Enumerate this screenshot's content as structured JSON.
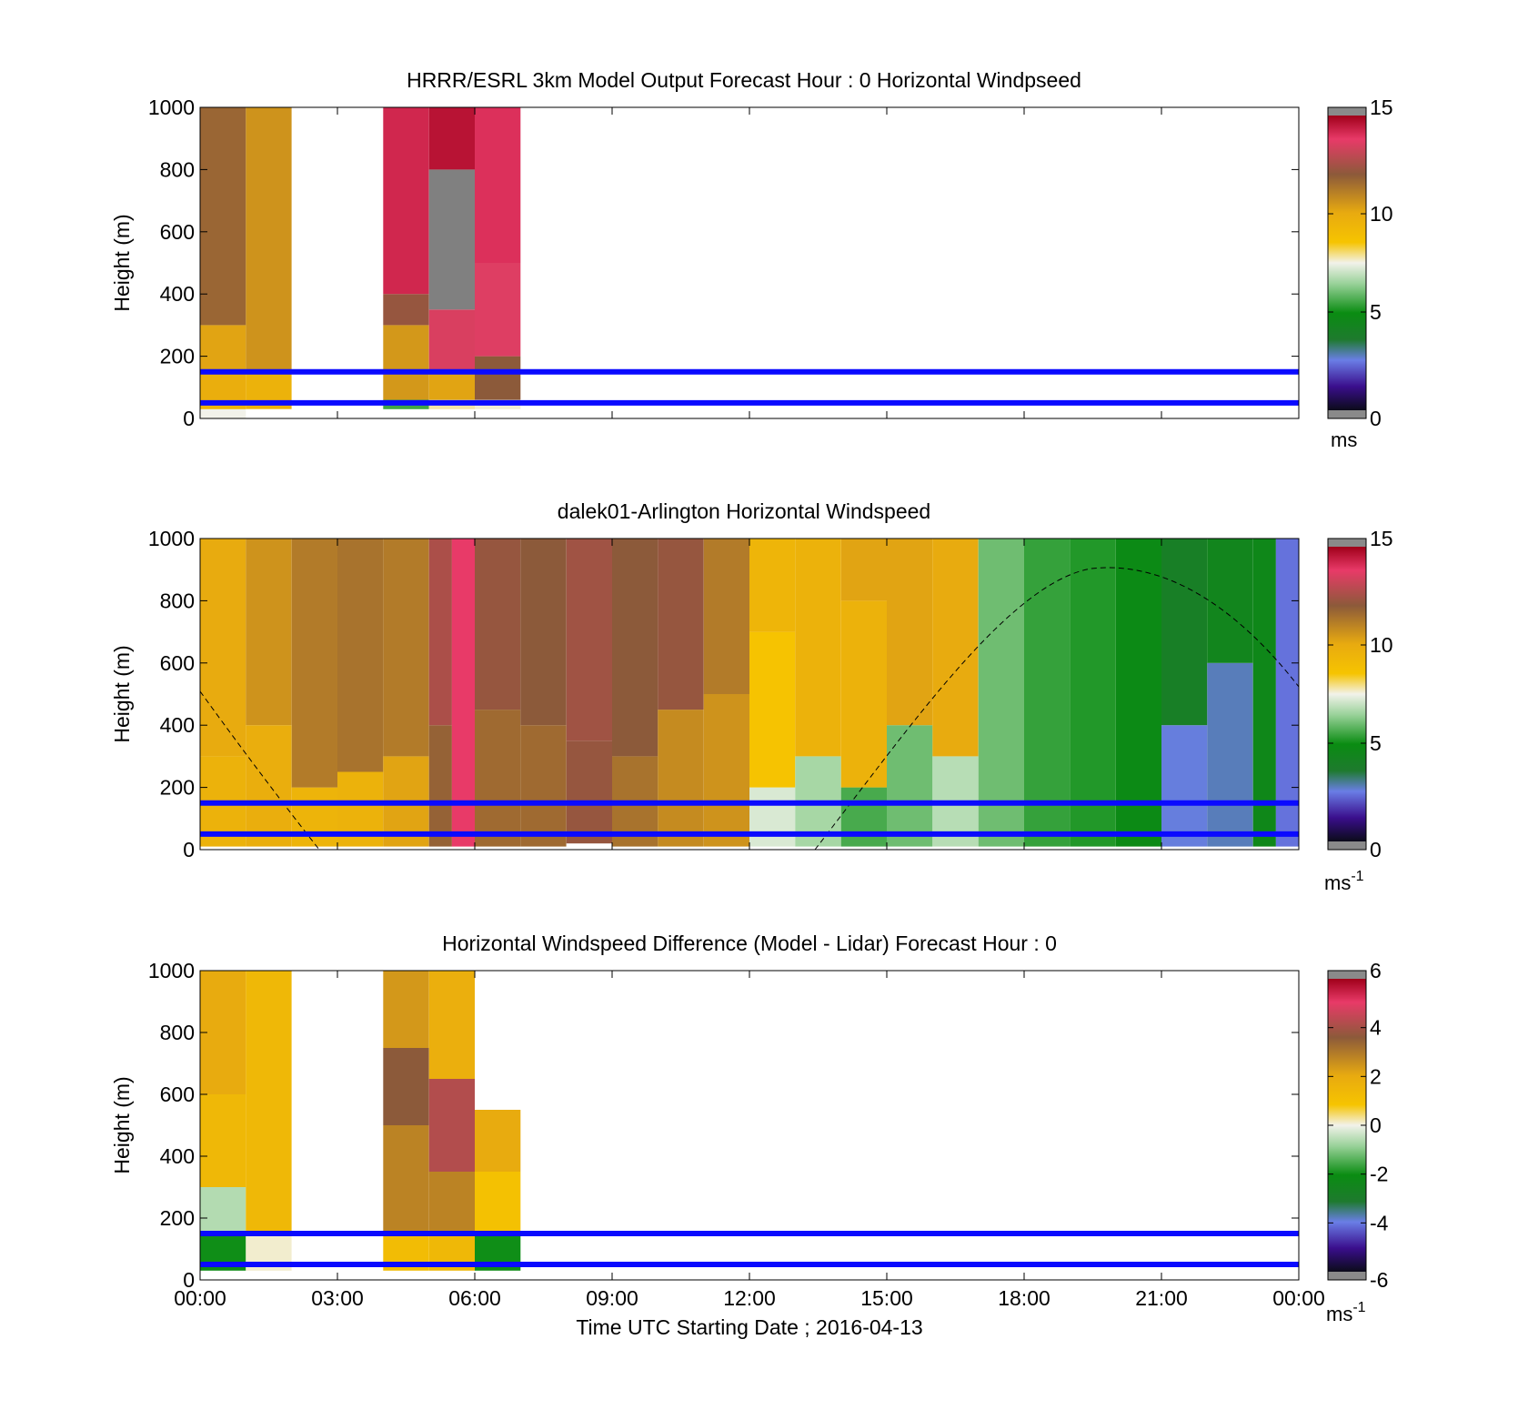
{
  "figure": {
    "x_axis": {
      "tick_labels": [
        "00:00",
        "03:00",
        "06:00",
        "09:00",
        "12:00",
        "15:00",
        "18:00",
        "21:00",
        "00:00"
      ],
      "label": "Time UTC  Starting Date ; 2016-04-13",
      "range_hours": [
        0,
        24
      ]
    },
    "y_axis": {
      "label": "Height (m)",
      "tick_labels": [
        "0",
        "200",
        "400",
        "600",
        "800",
        "1000"
      ],
      "range_m": [
        0,
        1000
      ]
    },
    "reference_lines_m": [
      50,
      150
    ],
    "reference_line_color": "#0a0aff"
  },
  "chart_data": [
    {
      "type": "heatmap",
      "panel": "model",
      "title": "HRRR/ESRL 3km Model Output   Forecast Hour : 0 Horizontal Windpseed",
      "colorbar": {
        "range": [
          0,
          15
        ],
        "tick_labels": [
          "0",
          "5",
          "10",
          "15"
        ],
        "unit_base": "ms",
        "unit_exp": ""
      },
      "x_unit": "hours UTC",
      "y_unit": "m",
      "columns": [
        {
          "x": [
            0,
            1
          ],
          "cells": [
            [
              0,
              30,
              7.5
            ],
            [
              30,
              60,
              9.5
            ],
            [
              60,
              150,
              9.8
            ],
            [
              150,
              300,
              10.2
            ],
            [
              300,
              1000,
              11.7
            ]
          ]
        },
        {
          "x": [
            1,
            2
          ],
          "cells": [
            [
              30,
              150,
              9.6
            ],
            [
              150,
              1000,
              10.6
            ]
          ]
        },
        {
          "x": [
            4,
            5
          ],
          "cells": [
            [
              30,
              60,
              5.5
            ],
            [
              60,
              300,
              10.5
            ],
            [
              300,
              400,
              12.2
            ],
            [
              400,
              1000,
              14.2
            ]
          ]
        },
        {
          "x": [
            5,
            6
          ],
          "cells": [
            [
              30,
              60,
              7.8
            ],
            [
              60,
              150,
              10.2
            ],
            [
              150,
              350,
              13.5
            ],
            [
              350,
              800,
              -1
            ],
            [
              800,
              1000,
              14.6
            ]
          ]
        },
        {
          "x": [
            6,
            7
          ],
          "cells": [
            [
              30,
              60,
              7.6
            ],
            [
              60,
              200,
              12.0
            ],
            [
              200,
              500,
              13.6
            ],
            [
              500,
              1000,
              14.0
            ]
          ]
        }
      ]
    },
    {
      "type": "heatmap",
      "panel": "lidar",
      "title": "dalek01-Arlington  Horizontal Windspeed",
      "colorbar": {
        "range": [
          0,
          15
        ],
        "tick_labels": [
          "0",
          "5",
          "10",
          "15"
        ],
        "unit_base": "ms",
        "unit_exp": "-1"
      },
      "x_unit": "hours UTC",
      "y_unit": "m",
      "columns": [
        {
          "x": [
            0,
            1
          ],
          "cells": [
            [
              10,
              300,
              9.6
            ],
            [
              300,
              1000,
              10.0
            ]
          ]
        },
        {
          "x": [
            1,
            2
          ],
          "cells": [
            [
              10,
              400,
              9.8
            ],
            [
              400,
              1000,
              10.6
            ]
          ]
        },
        {
          "x": [
            2,
            3
          ],
          "cells": [
            [
              10,
              200,
              9.5
            ],
            [
              200,
              1000,
              11.2
            ]
          ]
        },
        {
          "x": [
            3,
            4
          ],
          "cells": [
            [
              10,
              250,
              9.6
            ],
            [
              250,
              1000,
              11.4
            ]
          ]
        },
        {
          "x": [
            4,
            5
          ],
          "cells": [
            [
              10,
              300,
              10.2
            ],
            [
              300,
              1000,
              11.2
            ]
          ]
        },
        {
          "x": [
            5,
            5.5
          ],
          "cells": [
            [
              10,
              400,
              11.8
            ],
            [
              400,
              1000,
              12.6
            ]
          ]
        },
        {
          "x": [
            5.5,
            6
          ],
          "cells": [
            [
              10,
              1000,
              13.8
            ]
          ]
        },
        {
          "x": [
            6,
            7
          ],
          "cells": [
            [
              10,
              450,
              11.6
            ],
            [
              450,
              1000,
              12.2
            ]
          ]
        },
        {
          "x": [
            7,
            8
          ],
          "cells": [
            [
              10,
              400,
              11.6
            ],
            [
              400,
              1000,
              12.0
            ]
          ]
        },
        {
          "x": [
            8,
            9
          ],
          "cells": [
            [
              20,
              350,
              12.2
            ],
            [
              350,
              1000,
              12.4
            ]
          ]
        },
        {
          "x": [
            9,
            10
          ],
          "cells": [
            [
              10,
              300,
              11.4
            ],
            [
              300,
              1000,
              12.0
            ]
          ]
        },
        {
          "x": [
            10,
            11
          ],
          "cells": [
            [
              10,
              450,
              10.8
            ],
            [
              450,
              1000,
              12.2
            ]
          ]
        },
        {
          "x": [
            11,
            12
          ],
          "cells": [
            [
              10,
              500,
              10.6
            ],
            [
              500,
              1000,
              11.2
            ]
          ]
        },
        {
          "x": [
            12,
            13
          ],
          "cells": [
            [
              10,
              200,
              7.2
            ],
            [
              200,
              700,
              8.6
            ],
            [
              700,
              1000,
              9.4
            ]
          ]
        },
        {
          "x": [
            13,
            14
          ],
          "cells": [
            [
              10,
              300,
              6.6
            ],
            [
              300,
              1000,
              9.6
            ]
          ]
        },
        {
          "x": [
            14,
            15
          ],
          "cells": [
            [
              10,
              200,
              5.6
            ],
            [
              200,
              800,
              9.6
            ],
            [
              800,
              1000,
              10.2
            ]
          ]
        },
        {
          "x": [
            15,
            16
          ],
          "cells": [
            [
              10,
              400,
              6.0
            ],
            [
              400,
              1000,
              10.2
            ]
          ]
        },
        {
          "x": [
            16,
            17
          ],
          "cells": [
            [
              10,
              300,
              6.8
            ],
            [
              300,
              1000,
              10.0
            ]
          ]
        },
        {
          "x": [
            17,
            18
          ],
          "cells": [
            [
              10,
              1000,
              6.0
            ]
          ]
        },
        {
          "x": [
            18,
            19
          ],
          "cells": [
            [
              10,
              1000,
              5.4
            ]
          ]
        },
        {
          "x": [
            19,
            20
          ],
          "cells": [
            [
              10,
              1000,
              5.2
            ]
          ]
        },
        {
          "x": [
            20,
            21
          ],
          "cells": [
            [
              10,
              1000,
              4.8
            ]
          ]
        },
        {
          "x": [
            21,
            22
          ],
          "cells": [
            [
              10,
              400,
              2.6
            ],
            [
              400,
              1000,
              4.0
            ]
          ]
        },
        {
          "x": [
            22,
            23
          ],
          "cells": [
            [
              10,
              600,
              2.8
            ],
            [
              600,
              1000,
              4.4
            ]
          ]
        },
        {
          "x": [
            23,
            23.5
          ],
          "cells": [
            [
              10,
              1000,
              4.6
            ]
          ]
        },
        {
          "x": [
            23.5,
            24
          ],
          "cells": [
            [
              10,
              1000,
              2.4
            ]
          ]
        }
      ]
    },
    {
      "type": "heatmap",
      "panel": "difference",
      "title": "Horizontal Windspeed Difference (Model - Lidar) Forecast Hour : 0",
      "colorbar": {
        "range": [
          -6,
          6
        ],
        "tick_labels": [
          "-6",
          "-4",
          "-2",
          "0",
          "2",
          "4",
          "6"
        ],
        "unit_base": "ms",
        "unit_exp": "-1"
      },
      "x_unit": "hours UTC",
      "y_unit": "m",
      "columns": [
        {
          "x": [
            0,
            1
          ],
          "cells": [
            [
              30,
              150,
              -2.0
            ],
            [
              150,
              300,
              -0.6
            ],
            [
              300,
              600,
              1.4
            ],
            [
              600,
              1000,
              2.0
            ]
          ]
        },
        {
          "x": [
            1,
            2
          ],
          "cells": [
            [
              30,
              150,
              0.1
            ],
            [
              150,
              1000,
              1.4
            ]
          ]
        },
        {
          "x": [
            4,
            5
          ],
          "cells": [
            [
              30,
              150,
              1.2
            ],
            [
              150,
              500,
              2.8
            ],
            [
              500,
              750,
              3.6
            ],
            [
              750,
              1000,
              2.4
            ]
          ]
        },
        {
          "x": [
            5,
            6
          ],
          "cells": [
            [
              30,
              150,
              1.4
            ],
            [
              150,
              350,
              2.8
            ],
            [
              350,
              650,
              4.2
            ],
            [
              650,
              1000,
              1.8
            ]
          ]
        },
        {
          "x": [
            6,
            7
          ],
          "cells": [
            [
              30,
              150,
              -2.0
            ],
            [
              150,
              350,
              1.0
            ],
            [
              350,
              550,
              2.0
            ]
          ]
        }
      ]
    }
  ]
}
